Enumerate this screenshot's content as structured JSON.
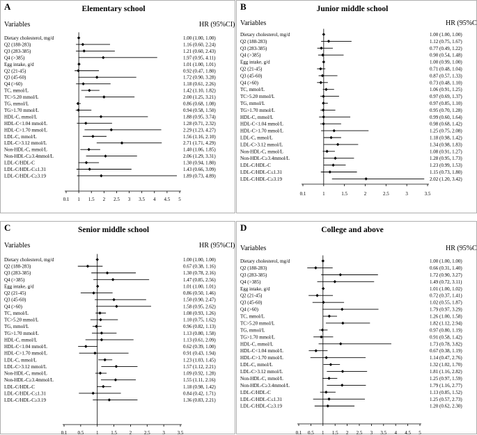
{
  "header_labels": {
    "variables": "Variables",
    "hr": "HR (95%CI)"
  },
  "chart_data": [
    {
      "type": "forest",
      "panel_letter": "A",
      "title": "Elementary school",
      "xscale": "log",
      "xlim": [
        0.1,
        5
      ],
      "xticks": [
        "0.1",
        "1",
        "1.5",
        "2",
        "2.5",
        "3",
        "3.5",
        "4",
        "4.5",
        "5"
      ],
      "reference_line": 1,
      "rows": [
        {
          "label": "Dietary cholesterol, mg/d",
          "hr": 1.0,
          "lo": 1.0,
          "hi": 1.0,
          "text": "1.00 (1.00, 1.00)"
        },
        {
          "label": "Q2 (188-283)",
          "hr": 1.16,
          "lo": 0.6,
          "hi": 2.24,
          "text": "1.16 (0.60, 2.24)"
        },
        {
          "label": "Q3 (283-385)",
          "hr": 1.21,
          "lo": 0.6,
          "hi": 2.43,
          "text": "1.21 (0.60, 2.43)"
        },
        {
          "label": "Q4 (>385)",
          "hr": 1.97,
          "lo": 0.95,
          "hi": 4.11,
          "text": "1.97 (0.95, 4.11)"
        },
        {
          "label": "Egg intake, g/d",
          "hr": 1.01,
          "lo": 1.0,
          "hi": 1.01,
          "text": "1.01 (1.00, 1.01)"
        },
        {
          "label": "Q2 (21-45)",
          "hr": 0.92,
          "lo": 0.47,
          "hi": 1.8,
          "text": "0.92 (0.47, 1.80)"
        },
        {
          "label": "Q3 (45-60)",
          "hr": 1.72,
          "lo": 0.9,
          "hi": 3.28,
          "text": "1.72 (0.90, 3.28)"
        },
        {
          "label": "Q4 (>60)",
          "hr": 1.18,
          "lo": 0.61,
          "hi": 2.26,
          "text": "1.18 (0.61, 2.26)"
        },
        {
          "label": "TC, mmol/L",
          "hr": 1.42,
          "lo": 1.1,
          "hi": 1.82,
          "text": "1.42 (1.10, 1.82)"
        },
        {
          "label": "TC>5.20 mmol/L",
          "hr": 2.0,
          "lo": 1.25,
          "hi": 3.21,
          "text": "2.00 (1.25, 3.21)"
        },
        {
          "label": "TG, mmol/L",
          "hr": 0.86,
          "lo": 0.68,
          "hi": 1.08,
          "text": "0.86 (0.68, 1.08)"
        },
        {
          "label": "TG>1.70 mmol/L",
          "hr": 0.94,
          "lo": 0.58,
          "hi": 1.5,
          "text": "0.94 (0.58, 1.50)"
        },
        {
          "label": "HDL-C, mmol/L",
          "hr": 1.88,
          "lo": 0.95,
          "hi": 3.74,
          "text": "1.88 (0.95, 3.74)"
        },
        {
          "label": "HDL-C<1.04 mmol/L",
          "hr": 1.28,
          "lo": 0.71,
          "hi": 2.32,
          "text": "1.28 (0.71, 2.32)"
        },
        {
          "label": "HDL-C>1.70 mmol/L",
          "hr": 2.29,
          "lo": 1.23,
          "hi": 4.27,
          "text": "2.29 (1.23, 4.27)"
        },
        {
          "label": "LDL-C, mmol/L",
          "hr": 1.56,
          "lo": 1.16,
          "hi": 2.1,
          "text": "1.56 (1.16, 2.10)"
        },
        {
          "label": "LDL-C>3.12 mmol/L",
          "hr": 2.71,
          "lo": 1.71,
          "hi": 4.29,
          "text": "2.71 (1.71, 4.29)"
        },
        {
          "label": "Non-HDL-C, mmol/L",
          "hr": 1.4,
          "lo": 1.06,
          "hi": 1.85,
          "text": "1.40 (1.06, 1.85)"
        },
        {
          "label": "Non-HDL-C≥3.4mmol/L",
          "hr": 2.06,
          "lo": 1.29,
          "hi": 3.31,
          "text": "2.06 (1.29, 3.31)"
        },
        {
          "label": "LDL-C/HDL-C",
          "hr": 1.3,
          "lo": 0.94,
          "hi": 1.8,
          "text": "1.30 (0.94, 1.80)"
        },
        {
          "label": "LDL-C/HDL-C≤1.31",
          "hr": 1.43,
          "lo": 0.66,
          "hi": 3.09,
          "text": "1.43 (0.66, 3.09)"
        },
        {
          "label": "LDL-C/HDL-C≥3.19",
          "hr": 1.89,
          "lo": 0.73,
          "hi": 4.89,
          "text": "1.89 (0.73, 4.89)"
        }
      ]
    },
    {
      "type": "forest",
      "panel_letter": "B",
      "title": "Junior middle school",
      "xscale": "log",
      "xlim": [
        0.1,
        3.5
      ],
      "xticks": [
        "0.1",
        "1",
        "1.5",
        "2",
        "2.5",
        "3",
        "3.5"
      ],
      "reference_line": 1,
      "rows": [
        {
          "label": "Dietary cholesterol, mg/d",
          "hr": 1.0,
          "lo": 1.0,
          "hi": 1.0,
          "text": "1.00 (1.00, 1.00)"
        },
        {
          "label": "Q2 (188-283)",
          "hr": 1.12,
          "lo": 0.75,
          "hi": 1.67,
          "text": "1.12 (0.75, 1.67)"
        },
        {
          "label": "Q3 (283-385)",
          "hr": 0.77,
          "lo": 0.49,
          "hi": 1.22,
          "text": "0.77 (0.49, 1.22)"
        },
        {
          "label": "Q4 (>385)",
          "hr": 0.9,
          "lo": 0.54,
          "hi": 1.48,
          "text": "0.90 (0.54, 1.48)"
        },
        {
          "label": "Egg intake, g/d",
          "hr": 1.0,
          "lo": 0.99,
          "hi": 1.0,
          "text": "1.00 (0.99, 1.00)"
        },
        {
          "label": "Q2 (21-45)",
          "hr": 0.71,
          "lo": 0.48,
          "hi": 1.04,
          "text": "0.71 (0.48, 1.04)"
        },
        {
          "label": "Q3 (45-60)",
          "hr": 0.87,
          "lo": 0.57,
          "hi": 1.33,
          "text": "0.87 (0.57, 1.33)"
        },
        {
          "label": "Q4 (>60)",
          "hr": 0.73,
          "lo": 0.48,
          "hi": 1.1,
          "text": "0.73 (0.48, 1.10)"
        },
        {
          "label": "TC, mmol/L",
          "hr": 1.06,
          "lo": 0.91,
          "hi": 1.25,
          "text": "1.06 (0.91, 1.25)"
        },
        {
          "label": "TC>5.20 mmol/L",
          "hr": 0.97,
          "lo": 0.69,
          "hi": 1.37,
          "text": "0.97 (0.69, 1.37)"
        },
        {
          "label": "TG, mmol/L",
          "hr": 0.97,
          "lo": 0.85,
          "hi": 1.1,
          "text": "0.97 (0.85, 1.10)"
        },
        {
          "label": "TG>1.70 mmol/L",
          "hr": 0.95,
          "lo": 0.7,
          "hi": 1.28,
          "text": "0.95 (0.70, 1.28)"
        },
        {
          "label": "HDL-C, mmol/L",
          "hr": 0.99,
          "lo": 0.6,
          "hi": 1.64,
          "text": "0.99 (0.60, 1.64)"
        },
        {
          "label": "HDL-C<1.04 mmol/L",
          "hr": 0.98,
          "lo": 0.68,
          "hi": 1.42,
          "text": "0.98 (0.68, 1.42)"
        },
        {
          "label": "HDL-C>1.70 mmol/L",
          "hr": 1.25,
          "lo": 0.75,
          "hi": 2.08,
          "text": "1.25 (0.75, 2.08)"
        },
        {
          "label": "LDL-C, mmol/L",
          "hr": 1.18,
          "lo": 0.98,
          "hi": 1.42,
          "text": "1.18 (0.98, 1.42)"
        },
        {
          "label": "LDL-C>3.12 mmol/L",
          "hr": 1.34,
          "lo": 0.98,
          "hi": 1.83,
          "text": "1.34 (0.98, 1.83)"
        },
        {
          "label": "Non-HDL-C, mmol/L",
          "hr": 1.08,
          "lo": 0.91,
          "hi": 1.27,
          "text": "1.08 (0.91, 1.27)"
        },
        {
          "label": "Non-HDL-C≥3.4mmol/L",
          "hr": 1.28,
          "lo": 0.95,
          "hi": 1.73,
          "text": "1.28 (0.95, 1.73)"
        },
        {
          "label": "LDL-C/HDL-C",
          "hr": 1.23,
          "lo": 0.99,
          "hi": 1.53,
          "text": "1.23 (0.99, 1.53)"
        },
        {
          "label": "LDL-C/HDL-C≤1.31",
          "hr": 1.15,
          "lo": 0.73,
          "hi": 1.8,
          "text": "1.15 (0.73, 1.80)"
        },
        {
          "label": "LDL-C/HDL-C≥3.19",
          "hr": 2.02,
          "lo": 1.2,
          "hi": 3.42,
          "text": "2.02 (1.20, 3.42)"
        }
      ]
    },
    {
      "type": "forest",
      "panel_letter": "C",
      "title": "Senior middle school",
      "xscale": "log",
      "xlim": [
        0.1,
        3.5
      ],
      "xticks": [
        "0.1",
        "0.5",
        "1",
        "1.5",
        "2",
        "2.5",
        "3",
        "3.5"
      ],
      "reference_line": 1,
      "rows": [
        {
          "label": "Dietary cholesterol, mg/d",
          "hr": 1.0,
          "lo": 1.0,
          "hi": 1.0,
          "text": "1.00 (1.00, 1.00)"
        },
        {
          "label": "Q2 (188-283)",
          "hr": 0.67,
          "lo": 0.38,
          "hi": 1.16,
          "text": "0.67 (0.38, 1.16)"
        },
        {
          "label": "Q3 (283-385)",
          "hr": 1.3,
          "lo": 0.78,
          "hi": 2.16,
          "text": "1.30 (0.78, 2.16)"
        },
        {
          "label": "Q4 (>385)",
          "hr": 1.47,
          "lo": 0.85,
          "hi": 2.56,
          "text": "1.47 (0.85, 2.56)"
        },
        {
          "label": "Egg intake, g/d",
          "hr": 1.01,
          "lo": 1.0,
          "hi": 1.01,
          "text": "1.01 (1.00, 1.01)"
        },
        {
          "label": "Q2 (21-45)",
          "hr": 0.86,
          "lo": 0.5,
          "hi": 1.46,
          "text": "0.86 (0.50, 1.46)"
        },
        {
          "label": "Q3 (45-60)",
          "hr": 1.5,
          "lo": 0.9,
          "hi": 2.47,
          "text": "1.50 (0.90, 2.47)"
        },
        {
          "label": "Q4 (>60)",
          "hr": 1.58,
          "lo": 0.95,
          "hi": 2.62,
          "text": "1.58 (0.95, 2.62)"
        },
        {
          "label": "TC, mmol/L",
          "hr": 1.08,
          "lo": 0.93,
          "hi": 1.26,
          "text": "1.08 (0.93, 1.26)"
        },
        {
          "label": "TC>5.20 mmol/L",
          "hr": 1.1,
          "lo": 0.75,
          "hi": 1.62,
          "text": "1.10 (0.75, 1.62)"
        },
        {
          "label": "TG, mmol/L",
          "hr": 0.96,
          "lo": 0.82,
          "hi": 1.13,
          "text": "0.96 (0.82, 1.13)"
        },
        {
          "label": "TG>1.70 mmol/L",
          "hr": 1.13,
          "lo": 0.8,
          "hi": 1.58,
          "text": "1.13 (0.80, 1.58)"
        },
        {
          "label": "HDL-C, mmol/L",
          "hr": 1.13,
          "lo": 0.61,
          "hi": 2.09,
          "text": "1.13 (0.61, 2.09)"
        },
        {
          "label": "HDL-C<1.04 mmol/L",
          "hr": 0.62,
          "lo": 0.39,
          "hi": 1.0,
          "text": "0.62 (0.39, 1.00)"
        },
        {
          "label": "HDL-C>1.70 mmol/L",
          "hr": 0.91,
          "lo": 0.43,
          "hi": 1.94,
          "text": "0.91 (0.43, 1.94)"
        },
        {
          "label": "LDL-C, mmol/L",
          "hr": 1.23,
          "lo": 1.03,
          "hi": 1.45,
          "text": "1.23 (1.03, 1.45)"
        },
        {
          "label": "LDL-C>3.12 mmol/L",
          "hr": 1.57,
          "lo": 1.12,
          "hi": 2.21,
          "text": "1.57 (1.12, 2.21)"
        },
        {
          "label": "Non-HDL-C, mmol/L",
          "hr": 1.09,
          "lo": 0.92,
          "hi": 1.28,
          "text": "1.09 (0.92, 1.28)"
        },
        {
          "label": "Non-HDL-C≥3.4mmol/L",
          "hr": 1.55,
          "lo": 1.11,
          "hi": 2.16,
          "text": "1.55 (1.11, 2.16)"
        },
        {
          "label": "LDL-C/HDL-C",
          "hr": 1.18,
          "lo": 0.98,
          "hi": 1.42,
          "text": "1.18 (0.98, 1.42)"
        },
        {
          "label": "LDL-C/HDL-C≤1.31",
          "hr": 0.84,
          "lo": 0.42,
          "hi": 1.71,
          "text": "0.84 (0.42, 1.71)"
        },
        {
          "label": "LDL-C/HDL-C≥3.19",
          "hr": 1.36,
          "lo": 0.83,
          "hi": 2.21,
          "text": "1.36 (0.83, 2.21)"
        }
      ]
    },
    {
      "type": "forest",
      "panel_letter": "D",
      "title": "College and above",
      "xscale": "log",
      "xlim": [
        0.1,
        5
      ],
      "xticks": [
        "0.1",
        "0.5",
        "1",
        "1.5",
        "2",
        "2.5",
        "3",
        "3.5",
        "4",
        "4.5",
        "5"
      ],
      "reference_line": 1,
      "rows": [
        {
          "label": "Dietary cholesterol, mg/d",
          "hr": 1.0,
          "lo": 1.0,
          "hi": 1.0,
          "text": "1.00 (1.00, 1.00)"
        },
        {
          "label": "Q2 (188-283)",
          "hr": 0.66,
          "lo": 0.31,
          "hi": 1.4,
          "text": "0.66 (0.31, 1.40)"
        },
        {
          "label": "Q3 (283-385)",
          "hr": 1.72,
          "lo": 0.9,
          "hi": 3.27,
          "text": "1.72 (0.90, 3.27)"
        },
        {
          "label": "Q4 (>385)",
          "hr": 1.49,
          "lo": 0.72,
          "hi": 3.11,
          "text": "1.49 (0.72, 3.11)"
        },
        {
          "label": "Egg intake, g/d",
          "hr": 1.01,
          "lo": 1.0,
          "hi": 1.02,
          "text": "1.01 (1.00, 1.02)"
        },
        {
          "label": "Q2 (21-45)",
          "hr": 0.72,
          "lo": 0.37,
          "hi": 1.41,
          "text": "0.72 (0.37, 1.41)"
        },
        {
          "label": "Q3 (45-60)",
          "hr": 1.02,
          "lo": 0.55,
          "hi": 1.87,
          "text": "1.02 (0.55, 1.87)"
        },
        {
          "label": "Q4 (>60)",
          "hr": 1.79,
          "lo": 0.97,
          "hi": 3.29,
          "text": "1.79 (0.97, 3.29)"
        },
        {
          "label": "TC, mmol/L",
          "hr": 1.26,
          "lo": 1.0,
          "hi": 1.58,
          "text": "1.26 (1.00, 1.58)"
        },
        {
          "label": "TC>5.20 mmol/L",
          "hr": 1.82,
          "lo": 1.12,
          "hi": 2.94,
          "text": "1.82 (1.12, 2.94)"
        },
        {
          "label": "TG, mmol/L",
          "hr": 0.97,
          "lo": 0.8,
          "hi": 1.19,
          "text": "0.97 (0.80, 1.19)"
        },
        {
          "label": "TG>1.70 mmol/L",
          "hr": 0.91,
          "lo": 0.58,
          "hi": 1.42,
          "text": "0.91 (0.58, 1.42)"
        },
        {
          "label": "HDL-C, mmol/L",
          "hr": 1.73,
          "lo": 0.78,
          "hi": 3.82,
          "text": "1.73 (0.78, 3.82)"
        },
        {
          "label": "HDL-C<1.04 mmol/L",
          "hr": 0.67,
          "lo": 0.38,
          "hi": 1.19,
          "text": "0.67 (0.38, 1.19)"
        },
        {
          "label": "HDL-C>1.70 mmol/L",
          "hr": 1.14,
          "lo": 0.47,
          "hi": 2.76,
          "text": "1.14 (0.47, 2.76)"
        },
        {
          "label": "LDL-C, mmol/L",
          "hr": 1.32,
          "lo": 1.02,
          "hi": 1.7,
          "text": "1.32 (1.02, 1.70)"
        },
        {
          "label": "LDL-C>3.12 mmol/L",
          "hr": 1.81,
          "lo": 1.16,
          "hi": 2.82,
          "text": "1.81 (1.16, 2.82)"
        },
        {
          "label": "Non-HDL-C, mmol/L",
          "hr": 1.25,
          "lo": 0.97,
          "hi": 1.59,
          "text": "1.25 (0.97, 1.59)"
        },
        {
          "label": "Non-HDL-C≥3.4mmol/L",
          "hr": 1.79,
          "lo": 1.16,
          "hi": 2.77,
          "text": "1.79 (1.16, 2.77)"
        },
        {
          "label": "LDL-C/HDL-C",
          "hr": 1.13,
          "lo": 0.85,
          "hi": 1.52,
          "text": "1.13 (0.85, 1.52)"
        },
        {
          "label": "LDL-C/HDL-C≤1.31",
          "hr": 1.25,
          "lo": 0.57,
          "hi": 2.73,
          "text": "1.25 (0.57, 2.73)"
        },
        {
          "label": "LDL-C/HDL-C≥3.19",
          "hr": 1.2,
          "lo": 0.62,
          "hi": 2.3,
          "text": "1.20 (0.62, 2.30)"
        }
      ]
    }
  ]
}
